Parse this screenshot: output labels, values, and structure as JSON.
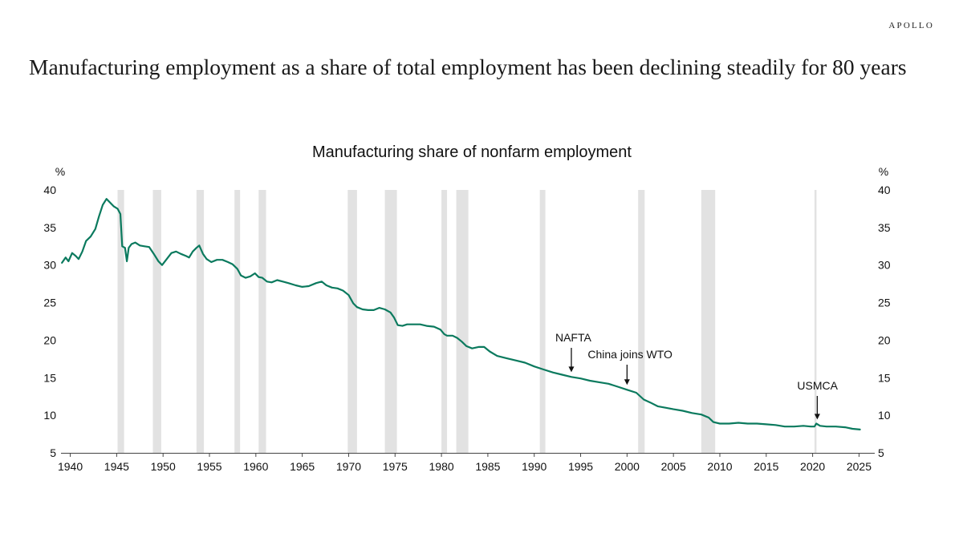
{
  "brand": "APOLLO",
  "headline": "Manufacturing employment as a share of total employment has been declining steadily for 80 years",
  "colors": {
    "line": "#0b7a5e",
    "recession": "#e2e2e2",
    "axis": "#444444",
    "text": "#111111"
  },
  "chart_data": {
    "type": "line",
    "title": "Manufacturing share of nonfarm employment",
    "ylabel_left": "%",
    "ylabel_right": "%",
    "xlim": [
      1939,
      2026
    ],
    "ylim": [
      5,
      40
    ],
    "x_ticks": [
      1940,
      1945,
      1950,
      1955,
      1960,
      1965,
      1970,
      1975,
      1980,
      1985,
      1990,
      1995,
      2000,
      2005,
      2010,
      2015,
      2020,
      2025
    ],
    "y_ticks": [
      5,
      10,
      15,
      20,
      25,
      30,
      35,
      40
    ],
    "grid": false,
    "series": [
      {
        "name": "Manufacturing share of nonfarm employment",
        "points": [
          [
            1939.1,
            30.3
          ],
          [
            1939.5,
            31.0
          ],
          [
            1939.8,
            30.5
          ],
          [
            1940.2,
            31.6
          ],
          [
            1940.6,
            31.2
          ],
          [
            1940.9,
            30.8
          ],
          [
            1941.3,
            31.8
          ],
          [
            1941.7,
            33.2
          ],
          [
            1942.2,
            33.8
          ],
          [
            1942.7,
            34.8
          ],
          [
            1943.1,
            36.5
          ],
          [
            1943.5,
            38.0
          ],
          [
            1943.9,
            38.8
          ],
          [
            1944.3,
            38.3
          ],
          [
            1944.7,
            37.8
          ],
          [
            1945.1,
            37.5
          ],
          [
            1945.4,
            36.8
          ],
          [
            1945.6,
            32.5
          ],
          [
            1945.9,
            32.3
          ],
          [
            1946.1,
            30.5
          ],
          [
            1946.3,
            32.3
          ],
          [
            1946.6,
            32.8
          ],
          [
            1947.0,
            33.0
          ],
          [
            1947.5,
            32.6
          ],
          [
            1948.0,
            32.5
          ],
          [
            1948.5,
            32.4
          ],
          [
            1949.0,
            31.5
          ],
          [
            1949.5,
            30.5
          ],
          [
            1949.9,
            30.0
          ],
          [
            1950.4,
            30.8
          ],
          [
            1950.9,
            31.6
          ],
          [
            1951.4,
            31.8
          ],
          [
            1951.9,
            31.5
          ],
          [
            1952.5,
            31.2
          ],
          [
            1952.8,
            31.0
          ],
          [
            1953.2,
            31.8
          ],
          [
            1953.6,
            32.3
          ],
          [
            1953.9,
            32.6
          ],
          [
            1954.3,
            31.5
          ],
          [
            1954.7,
            30.8
          ],
          [
            1955.2,
            30.4
          ],
          [
            1955.8,
            30.7
          ],
          [
            1956.4,
            30.7
          ],
          [
            1957.0,
            30.4
          ],
          [
            1957.5,
            30.1
          ],
          [
            1958.0,
            29.5
          ],
          [
            1958.4,
            28.6
          ],
          [
            1958.9,
            28.3
          ],
          [
            1959.4,
            28.5
          ],
          [
            1959.9,
            28.9
          ],
          [
            1960.3,
            28.4
          ],
          [
            1960.7,
            28.3
          ],
          [
            1961.2,
            27.8
          ],
          [
            1961.7,
            27.7
          ],
          [
            1962.3,
            28.0
          ],
          [
            1962.9,
            27.8
          ],
          [
            1963.5,
            27.6
          ],
          [
            1964.3,
            27.3
          ],
          [
            1965.0,
            27.1
          ],
          [
            1965.7,
            27.2
          ],
          [
            1966.5,
            27.6
          ],
          [
            1967.1,
            27.8
          ],
          [
            1967.6,
            27.3
          ],
          [
            1968.2,
            27.0
          ],
          [
            1968.8,
            26.9
          ],
          [
            1969.4,
            26.6
          ],
          [
            1970.0,
            26.0
          ],
          [
            1970.5,
            24.9
          ],
          [
            1970.9,
            24.4
          ],
          [
            1971.5,
            24.1
          ],
          [
            1972.1,
            24.0
          ],
          [
            1972.7,
            24.0
          ],
          [
            1973.3,
            24.3
          ],
          [
            1973.9,
            24.1
          ],
          [
            1974.5,
            23.7
          ],
          [
            1974.9,
            23.0
          ],
          [
            1975.3,
            22.0
          ],
          [
            1975.8,
            21.9
          ],
          [
            1976.3,
            22.1
          ],
          [
            1977.0,
            22.1
          ],
          [
            1977.7,
            22.1
          ],
          [
            1978.4,
            21.9
          ],
          [
            1979.2,
            21.8
          ],
          [
            1979.9,
            21.4
          ],
          [
            1980.3,
            20.8
          ],
          [
            1980.6,
            20.6
          ],
          [
            1981.2,
            20.6
          ],
          [
            1981.7,
            20.3
          ],
          [
            1982.2,
            19.8
          ],
          [
            1982.7,
            19.2
          ],
          [
            1983.3,
            18.9
          ],
          [
            1984.0,
            19.1
          ],
          [
            1984.6,
            19.1
          ],
          [
            1985.2,
            18.5
          ],
          [
            1986.0,
            17.9
          ],
          [
            1987.0,
            17.6
          ],
          [
            1988.0,
            17.3
          ],
          [
            1989.0,
            17.0
          ],
          [
            1990.0,
            16.5
          ],
          [
            1991.0,
            16.1
          ],
          [
            1992.0,
            15.7
          ],
          [
            1993.0,
            15.4
          ],
          [
            1994.0,
            15.1
          ],
          [
            1995.0,
            14.9
          ],
          [
            1996.0,
            14.6
          ],
          [
            1997.0,
            14.4
          ],
          [
            1998.0,
            14.2
          ],
          [
            1999.0,
            13.8
          ],
          [
            2000.0,
            13.4
          ],
          [
            2001.0,
            13.0
          ],
          [
            2001.8,
            12.1
          ],
          [
            2002.5,
            11.7
          ],
          [
            2003.3,
            11.2
          ],
          [
            2004.2,
            11.0
          ],
          [
            2005.0,
            10.8
          ],
          [
            2006.0,
            10.6
          ],
          [
            2007.0,
            10.3
          ],
          [
            2008.0,
            10.1
          ],
          [
            2008.8,
            9.7
          ],
          [
            2009.3,
            9.1
          ],
          [
            2010.0,
            8.9
          ],
          [
            2011.0,
            8.9
          ],
          [
            2012.0,
            9.0
          ],
          [
            2013.0,
            8.9
          ],
          [
            2014.0,
            8.9
          ],
          [
            2015.0,
            8.8
          ],
          [
            2016.0,
            8.7
          ],
          [
            2017.0,
            8.5
          ],
          [
            2018.0,
            8.5
          ],
          [
            2019.0,
            8.6
          ],
          [
            2019.8,
            8.5
          ],
          [
            2020.2,
            8.5
          ],
          [
            2020.4,
            8.9
          ],
          [
            2020.8,
            8.6
          ],
          [
            2021.5,
            8.5
          ],
          [
            2022.5,
            8.5
          ],
          [
            2023.5,
            8.4
          ],
          [
            2024.3,
            8.2
          ],
          [
            2025.1,
            8.1
          ]
        ]
      }
    ],
    "recessions": [
      [
        1945.1,
        1945.8
      ],
      [
        1948.9,
        1949.8
      ],
      [
        1953.6,
        1954.4
      ],
      [
        1957.7,
        1958.3
      ],
      [
        1960.3,
        1961.1
      ],
      [
        1969.9,
        1970.9
      ],
      [
        1973.9,
        1975.2
      ],
      [
        1980.0,
        1980.6
      ],
      [
        1981.6,
        1982.9
      ],
      [
        1990.6,
        1991.2
      ],
      [
        2001.2,
        2001.9
      ],
      [
        2008.0,
        2009.5
      ],
      [
        2020.2,
        2020.4
      ]
    ],
    "annotations": [
      {
        "label": "NAFTA",
        "x": 1994.0,
        "y": 15.1,
        "key": "nafta"
      },
      {
        "label": "China joins WTO",
        "x": 2000.0,
        "y": 13.4,
        "key": "wto"
      },
      {
        "label": "USMCA",
        "x": 2020.5,
        "y": 8.8,
        "key": "usmca"
      }
    ]
  }
}
